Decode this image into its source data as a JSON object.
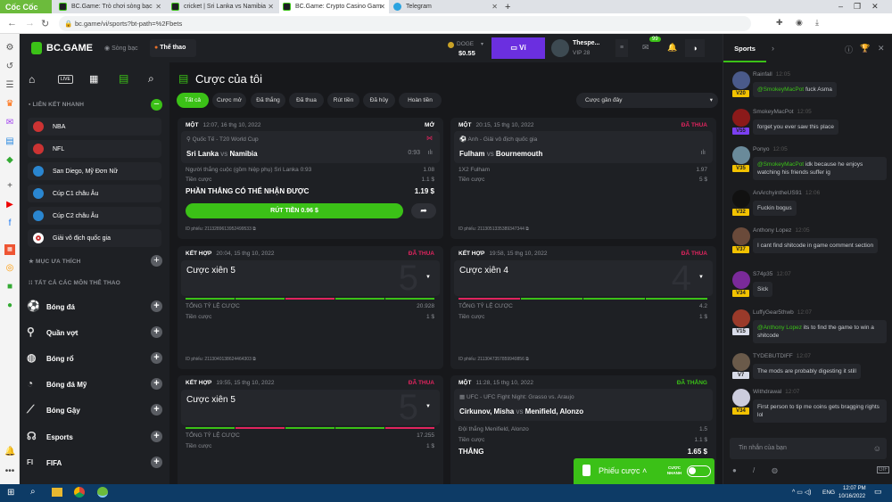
{
  "browser": {
    "brand": "Cốc Cốc",
    "tabs": [
      {
        "title": "BC.Game: Trò chơi sòng bạc"
      },
      {
        "title": "cricket | Sri Lanka vs Namibia"
      },
      {
        "title": "BC.Game: Crypto Casino Gam"
      },
      {
        "title": "Telegram"
      }
    ],
    "url": "bc.game/vi/sports?bt-path=%2Fbets"
  },
  "header": {
    "logo": "BC.GAME",
    "casino": "Sòng bạc",
    "sports": "Thể thao",
    "currency": "DOGE",
    "balance": "$0.55",
    "wallet": "Ví",
    "username": "Thespe...",
    "vip": "VIP 28",
    "mail_badge": "99"
  },
  "sidebar": {
    "quick_links_title": "LIÊN KẾT NHANH",
    "quick_links": [
      "NBA",
      "NFL",
      "San Diego, Mỹ Đơn Nữ",
      "Cúp C1 châu Âu",
      "Cúp C2 châu Âu",
      "Giải vô địch quốc gia"
    ],
    "favorites_title": "MỤC ƯA THÍCH",
    "all_sports_title": "TẤT CẢ CÁC MÔN THỂ THAO",
    "sports": [
      "Bóng đá",
      "Quần vợt",
      "Bóng rổ",
      "Bóng đá Mỹ",
      "Bóng Gậy",
      "Esports",
      "FIFA"
    ]
  },
  "main": {
    "title": "Cược của tôi",
    "filters": [
      "Tất cả",
      "Cược mở",
      "Đã thắng",
      "Đã thua",
      "Rút tiền",
      "Đã hủy",
      "Hoàn tiền"
    ],
    "sort": "Cược gần đây",
    "bets": [
      {
        "type": "MỘT",
        "time": "12:07, 16 thg 10, 2022",
        "status": "MỞ",
        "league": "Quốc Tế - T20 World Cup",
        "home": "Sri Lanka",
        "vs": "vs",
        "away": "Namibia",
        "score": "0:93",
        "selection": "Người thắng cuộc (gồm hiệp phụ) Sri Lanka  0:93",
        "odds": "1.08",
        "stake_label": "Tiền cược",
        "stake": "1.1 $",
        "payout_label": "PHẦN THẮNG CÓ THỂ NHẬN ĐƯỢC",
        "payout": "1.19 $",
        "cashout": "RÚT TIỀN 0.96 $",
        "id": "ID phiếu: 2113289613952499533"
      },
      {
        "type": "MỘT",
        "time": "20:15, 15 thg 10, 2022",
        "status": "ĐÃ THUA",
        "league": "Anh - Giải vô địch quốc gia",
        "home": "Fulham",
        "vs": "vs",
        "away": "Bournemouth",
        "selection": "1X2 Fulham",
        "odds": "1.97",
        "stake_label": "Tiền cược",
        "stake": "5 $",
        "id": "ID phiếu: 2113051335389347344"
      },
      {
        "type": "KẾT HỢP",
        "time": "20:04, 15 thg 10, 2022",
        "status": "ĐÃ THUA",
        "parlay": "Cược xiên 5",
        "legs": "5",
        "leg_results": [
          "won",
          "won",
          "lost",
          "won",
          "won"
        ],
        "total_label": "TỔNG TỶ LỆ CƯỢC",
        "total": "20.928",
        "stake_label": "Tiền cược",
        "stake": "1 $",
        "id": "ID phiếu: 2113040138624464303"
      },
      {
        "type": "KẾT HỢP",
        "time": "19:58, 15 thg 10, 2022",
        "status": "ĐÃ THUA",
        "parlay": "Cược xiên 4",
        "legs": "4",
        "leg_results": [
          "lost",
          "won",
          "won",
          "won"
        ],
        "total_label": "TỔNG TỶ LỆ CƯỢC",
        "total": "4.2",
        "stake_label": "Tiền cược",
        "stake": "1 $",
        "id": "ID phiếu: 2113047357859940856"
      },
      {
        "type": "KẾT HỢP",
        "time": "19:55, 15 thg 10, 2022",
        "status": "ĐÃ THUA",
        "parlay": "Cược xiên 5",
        "legs": "5",
        "leg_results": [
          "won",
          "lost",
          "won",
          "won",
          "lost"
        ],
        "total_label": "TỔNG TỶ LỆ CƯỢC",
        "total": "17.255",
        "stake_label": "Tiền cược",
        "stake": "1 $"
      },
      {
        "type": "MỘT",
        "time": "11:28, 15 thg 10, 2022",
        "status": "ĐÃ THẮNG",
        "league": "UFC - UFC Fight Night: Grasso vs. Araujo",
        "home": "Cirkunov, Misha",
        "vs": "vs",
        "away": "Menifield, Alonzo",
        "selection": "Đội thắng Menifield, Alonzo",
        "odds": "1.5",
        "stake_label": "Tiền cược",
        "stake": "1.1 $",
        "payout_label": "THẮNG",
        "payout": "1.65 $"
      }
    ],
    "betslip": "Phiếu cược",
    "quick_bet": "CƯỢC NHANH"
  },
  "chat": {
    "tab": "Sports",
    "placeholder": "Tin nhắn của bạn",
    "messages": [
      {
        "user": "Rainfall",
        "time": "12:05",
        "vip": "V20",
        "mention": "@SmokeyMacPot",
        "text": "fuck Asma"
      },
      {
        "user": "SmokeyMacPot",
        "time": "12:05",
        "vip": "V55",
        "text": "forget you ever saw this place"
      },
      {
        "user": "Ponyo",
        "time": "12:05",
        "vip": "V35",
        "mention": "@SmokeyMacPot",
        "text": "idk because he enjoys watching his friends suffer ig"
      },
      {
        "user": "AnArchyintheUS91",
        "time": "12:06",
        "vip": "V32",
        "text": "Fuckin bogus"
      },
      {
        "user": "Anthony Lopez",
        "time": "12:05",
        "vip": "V37",
        "text": "I cant find shitcode in game comment section"
      },
      {
        "user": "S74p35",
        "time": "12:07",
        "vip": "V34",
        "text": "Sick"
      },
      {
        "user": "LuffyGear5thwb",
        "time": "12:07",
        "vip": "V15",
        "mention": "@Anthony Lopez",
        "text": "its to find the game to win a shitcode"
      },
      {
        "user": "TYDEBUTDIFF",
        "time": "12:07",
        "vip": "V7",
        "text": "The mods are probably digesting it still"
      },
      {
        "user": "Withdrawal",
        "time": "12:07",
        "vip": "V34",
        "text": "First person to tip me coins gets bragging rights lol"
      }
    ]
  },
  "taskbar": {
    "lang": "ENG",
    "time": "12:07 PM",
    "date": "10/16/2022"
  },
  "colors": {
    "green": "#3bc117",
    "red": "#e0245e",
    "purple": "#6b2fe0",
    "bg": "#17181b",
    "panel": "#1e2024"
  }
}
